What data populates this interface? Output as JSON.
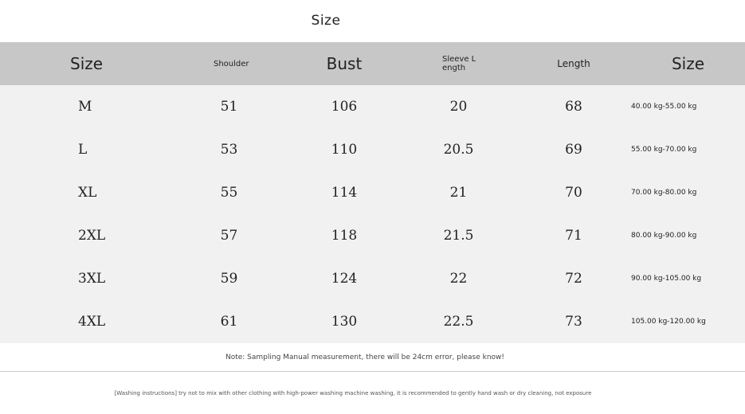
{
  "title": "Size",
  "table": {
    "headers": [
      {
        "label": "Size",
        "key": "size"
      },
      {
        "label": "Shoulder",
        "key": "shoulder"
      },
      {
        "label": "Bust",
        "key": "bust"
      },
      {
        "label": "Sleeve Length",
        "key": "sleeve-length"
      },
      {
        "label": "Length",
        "key": "length"
      },
      {
        "label": "Size",
        "key": "weight-range"
      }
    ],
    "rows": [
      [
        "M",
        "51",
        "106",
        "20",
        "68",
        "40.00 kg-55.00 kg"
      ],
      [
        "L",
        "53",
        "110",
        "20.5",
        "69",
        "55.00 kg-70.00 kg"
      ],
      [
        "XL",
        "55",
        "114",
        "21",
        "70",
        "70.00 kg-80.00 kg"
      ],
      [
        "2XL",
        "57",
        "118",
        "21.5",
        "71",
        "80.00 kg-90.00 kg"
      ],
      [
        "3XL",
        "59",
        "124",
        "22",
        "72",
        "90.00 kg-105.00 kg"
      ],
      [
        "4XL",
        "61",
        "130",
        "22.5",
        "73",
        "105.00 kg-120.00 kg"
      ]
    ]
  },
  "note": "Note: Sampling Manual measurement, there will be 24cm error, please know!",
  "washing": "[Washing instructions] try not to mix with other clothing with high-power washing machine washing, it is recommended to gently hand wash or dry cleaning, not exposure"
}
